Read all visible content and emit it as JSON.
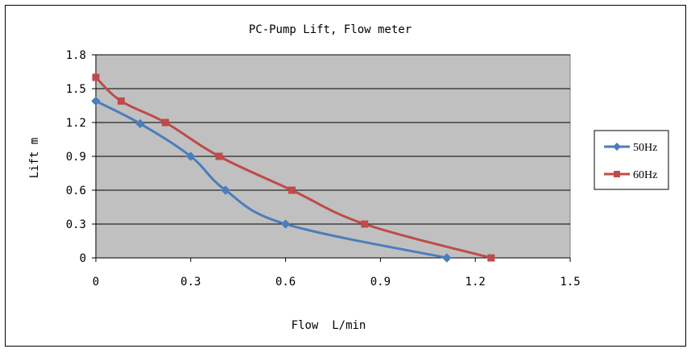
{
  "chart_data": {
    "type": "line",
    "title": "PC-Pump Lift, Flow meter",
    "xlabel": "Flow  L/min",
    "ylabel": "Lift m",
    "xlim": [
      0,
      1.5
    ],
    "ylim": [
      0,
      1.8
    ],
    "xticks": [
      "0",
      "0.3",
      "0.6",
      "0.9",
      "1.2",
      "1.5"
    ],
    "yticks": [
      "0",
      "0.3",
      "0.6",
      "0.9",
      "1.2",
      "1.5",
      "1.8"
    ],
    "grid": "horizontal",
    "legend_position": "right",
    "plot_background": "#c0c0c0",
    "series": [
      {
        "name": "50Hz",
        "color": "#4a7ebb",
        "marker": "diamond",
        "x": [
          0,
          0.14,
          0.3,
          0.41,
          0.6,
          1.11
        ],
        "y": [
          1.39,
          1.19,
          0.9,
          0.6,
          0.3,
          0
        ]
      },
      {
        "name": "60Hz",
        "color": "#be4b48",
        "marker": "square",
        "x": [
          0,
          0.08,
          0.22,
          0.39,
          0.62,
          0.85,
          1.25
        ],
        "y": [
          1.6,
          1.39,
          1.2,
          0.9,
          0.6,
          0.3,
          0
        ]
      }
    ]
  }
}
